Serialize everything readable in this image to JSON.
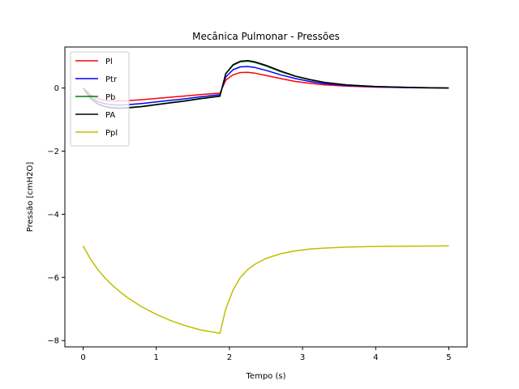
{
  "chart_data": {
    "type": "line",
    "title": "Mecânica Pulmonar - Pressões",
    "xlabel": "Tempo (s)",
    "ylabel": "Pressão [cmH2O]",
    "xlim": [
      -0.25,
      5.25
    ],
    "ylim": [
      -8.2,
      1.3
    ],
    "xticks": [
      0,
      1,
      2,
      3,
      4,
      5
    ],
    "yticks": [
      -8,
      -6,
      -4,
      -2,
      0
    ],
    "grid": false,
    "legend_position": "top-left",
    "x": [
      0,
      0.1,
      0.2,
      0.3,
      0.4,
      0.5,
      0.6,
      0.8,
      1.0,
      1.2,
      1.4,
      1.6,
      1.87,
      1.95,
      2.05,
      2.15,
      2.25,
      2.35,
      2.5,
      2.7,
      2.9,
      3.1,
      3.3,
      3.6,
      4.0,
      4.5,
      5.0
    ],
    "series": [
      {
        "name": "Pl",
        "color": "#ff0000",
        "values": [
          0,
          -0.22,
          -0.34,
          -0.39,
          -0.41,
          -0.41,
          -0.4,
          -0.37,
          -0.33,
          -0.29,
          -0.25,
          -0.21,
          -0.16,
          0.25,
          0.42,
          0.49,
          0.5,
          0.47,
          0.4,
          0.3,
          0.21,
          0.15,
          0.1,
          0.06,
          0.03,
          0.01,
          0.0
        ]
      },
      {
        "name": "Ptr",
        "color": "#0000ff",
        "values": [
          0,
          -0.28,
          -0.43,
          -0.5,
          -0.53,
          -0.54,
          -0.53,
          -0.49,
          -0.44,
          -0.39,
          -0.34,
          -0.28,
          -0.21,
          0.35,
          0.58,
          0.67,
          0.68,
          0.65,
          0.56,
          0.42,
          0.3,
          0.21,
          0.14,
          0.08,
          0.04,
          0.01,
          0.0
        ]
      },
      {
        "name": "Pb",
        "color": "#008000",
        "values": [
          0,
          -0.32,
          -0.5,
          -0.58,
          -0.62,
          -0.63,
          -0.62,
          -0.58,
          -0.52,
          -0.46,
          -0.4,
          -0.33,
          -0.25,
          0.45,
          0.72,
          0.83,
          0.85,
          0.81,
          0.7,
          0.52,
          0.37,
          0.26,
          0.18,
          0.1,
          0.05,
          0.02,
          0.0
        ]
      },
      {
        "name": "PA",
        "color": "#000000",
        "values": [
          0,
          -0.33,
          -0.51,
          -0.59,
          -0.63,
          -0.64,
          -0.63,
          -0.59,
          -0.53,
          -0.47,
          -0.41,
          -0.34,
          -0.26,
          0.46,
          0.74,
          0.85,
          0.87,
          0.83,
          0.72,
          0.54,
          0.38,
          0.27,
          0.18,
          0.1,
          0.05,
          0.02,
          0.0
        ]
      },
      {
        "name": "Ppl",
        "color": "#bfbf00",
        "values": [
          -5.0,
          -5.42,
          -5.75,
          -6.02,
          -6.25,
          -6.45,
          -6.63,
          -6.93,
          -7.17,
          -7.37,
          -7.53,
          -7.66,
          -7.77,
          -7.0,
          -6.4,
          -6.0,
          -5.75,
          -5.58,
          -5.4,
          -5.25,
          -5.16,
          -5.1,
          -5.07,
          -5.04,
          -5.02,
          -5.01,
          -5.0
        ]
      }
    ]
  }
}
